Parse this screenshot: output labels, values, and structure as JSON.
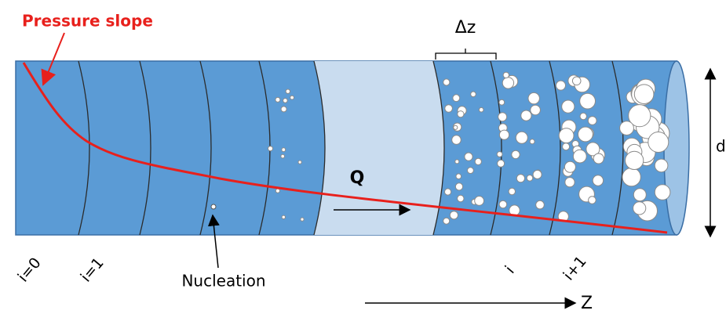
{
  "annotations": {
    "pressure_slope": "Pressure slope",
    "delta_z": "Δz",
    "flow": "Q",
    "nucleation": "Nucleation",
    "diameter": "d",
    "axis": "Z"
  },
  "segment_labels": [
    "i=0",
    "i=1",
    "i",
    "i+1"
  ]
}
